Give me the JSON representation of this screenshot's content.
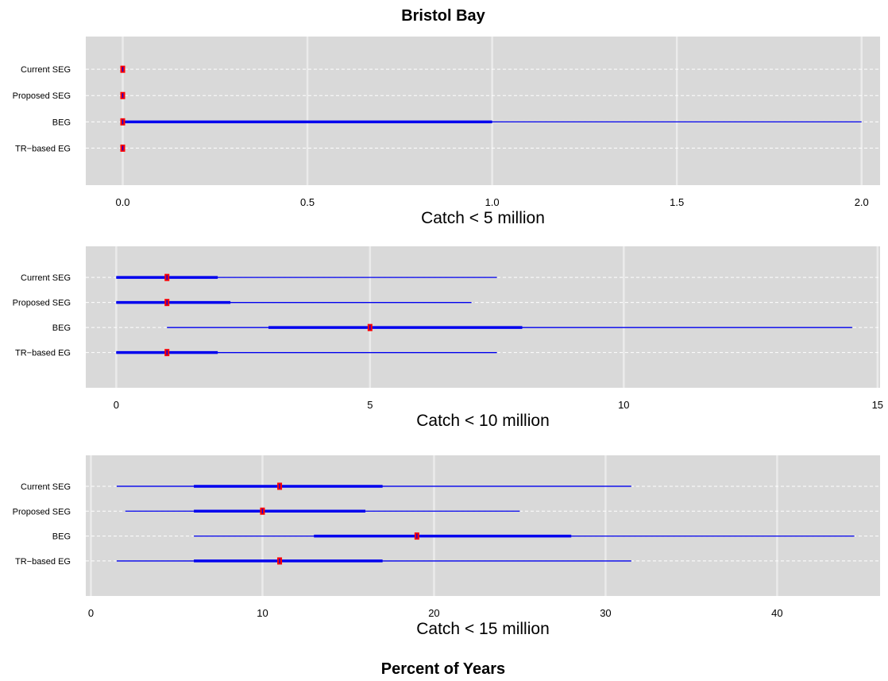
{
  "title": "Bristol Bay",
  "xlabel": "Percent of Years",
  "chart_data": [
    {
      "type": "interval",
      "title": "Catch < 5 million",
      "categories": [
        "Current SEG",
        "Proposed SEG",
        "BEG",
        "TR−based EG"
      ],
      "xlim": [
        -0.1,
        2.05
      ],
      "xticks": [
        0,
        0.5,
        1,
        1.5,
        2
      ],
      "xtick_labels": [
        "0.0",
        "0.5",
        "1.0",
        "1.5",
        "2.0"
      ],
      "grid": true,
      "colors": {
        "range": "#0000ee",
        "median": "#ff0000"
      },
      "series": [
        {
          "category": "Current SEG",
          "min": 0,
          "q1": 0,
          "median": 0,
          "q3": 0,
          "max": 0
        },
        {
          "category": "Proposed SEG",
          "min": 0,
          "q1": 0,
          "median": 0,
          "q3": 0,
          "max": 0
        },
        {
          "category": "BEG",
          "min": 0,
          "q1": 0,
          "median": 0,
          "q3": 1.0,
          "max": 2.0
        },
        {
          "category": "TR−based EG",
          "min": 0,
          "q1": 0,
          "median": 0,
          "q3": 0,
          "max": 0
        }
      ]
    },
    {
      "type": "interval",
      "title": "Catch < 10 million",
      "categories": [
        "Current SEG",
        "Proposed SEG",
        "BEG",
        "TR−based EG"
      ],
      "xlim": [
        -0.6,
        15.05
      ],
      "xticks": [
        0,
        5,
        10,
        15
      ],
      "xtick_labels": [
        "0",
        "5",
        "10",
        "15"
      ],
      "grid": true,
      "colors": {
        "range": "#0000ee",
        "median": "#ff0000"
      },
      "series": [
        {
          "category": "Current SEG",
          "min": 0,
          "q1": 0,
          "median": 1,
          "q3": 2,
          "max": 7.5
        },
        {
          "category": "Proposed SEG",
          "min": 0,
          "q1": 0,
          "median": 1,
          "q3": 2.25,
          "max": 7
        },
        {
          "category": "BEG",
          "min": 1,
          "q1": 3,
          "median": 5,
          "q3": 8,
          "max": 14.5
        },
        {
          "category": "TR−based EG",
          "min": 0,
          "q1": 0,
          "median": 1,
          "q3": 2,
          "max": 7.5
        }
      ]
    },
    {
      "type": "interval",
      "title": "Catch < 15 million",
      "categories": [
        "Current SEG",
        "Proposed SEG",
        "BEG",
        "TR−based EG"
      ],
      "xlim": [
        -0.3,
        46
      ],
      "xticks": [
        0,
        10,
        20,
        30,
        40
      ],
      "xtick_labels": [
        "0",
        "10",
        "20",
        "30",
        "40"
      ],
      "grid": true,
      "colors": {
        "range": "#0000ee",
        "median": "#ff0000"
      },
      "series": [
        {
          "category": "Current SEG",
          "min": 1.5,
          "q1": 6,
          "median": 11,
          "q3": 17,
          "max": 31.5
        },
        {
          "category": "Proposed SEG",
          "min": 2,
          "q1": 6,
          "median": 10,
          "q3": 16,
          "max": 25
        },
        {
          "category": "BEG",
          "min": 6,
          "q1": 13,
          "median": 19,
          "q3": 28,
          "max": 44.5
        },
        {
          "category": "TR−based EG",
          "min": 1.5,
          "q1": 6,
          "median": 11,
          "q3": 17,
          "max": 31.5
        }
      ]
    }
  ]
}
